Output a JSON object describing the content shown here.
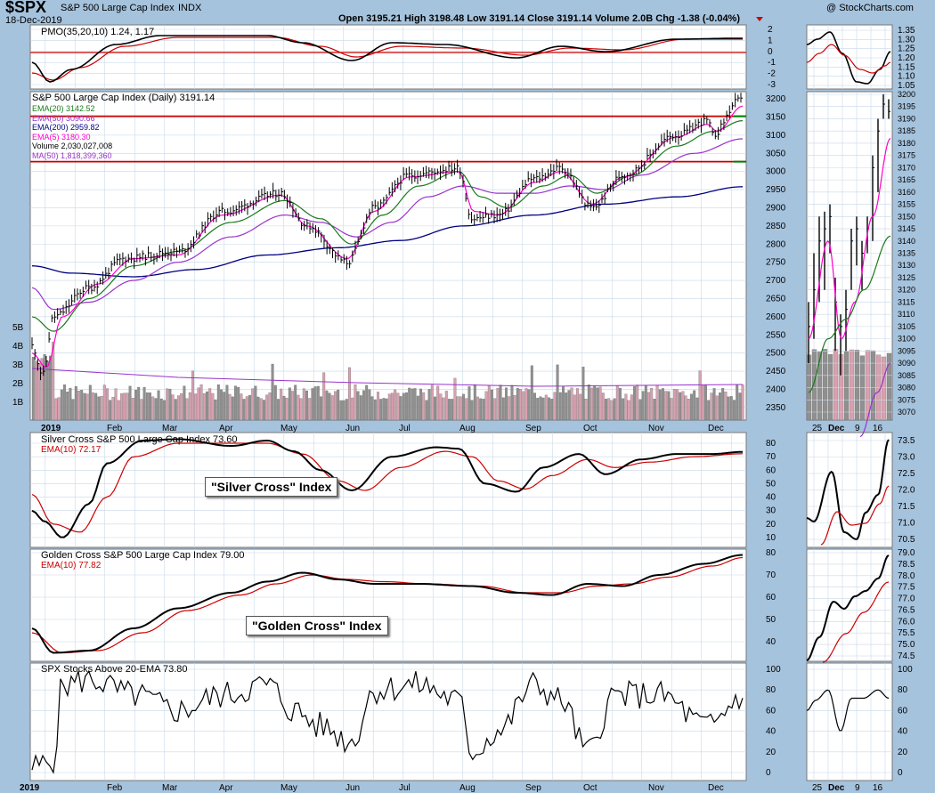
{
  "header": {
    "symbol": "$SPX",
    "name": "S&P 500 Large Cap Index",
    "exchange": "INDX",
    "date": "18-Dec-2019",
    "stats": "Open 3195.21  High 3198.48  Low 3191.14  Close 3191.14  Volume 2.0B  Chg -1.38 (-0.04%)",
    "copyright": "@ StockCharts.com"
  },
  "colors": {
    "background": "#a6c3dd",
    "panel": "#ffffff",
    "grid": "#c8d8e8",
    "price": "#000000",
    "ema20": "#1a7a1a",
    "ema50": "#9933cc",
    "ema200": "#000080",
    "ema5": "#ff00cc",
    "volume_up": "#d9a0b0",
    "volume_down": "#909090",
    "signal": "#cc0000",
    "hline_red": "#cc0000",
    "hline_green": "#008000"
  },
  "pmo_panel": {
    "label": "PMO(35,20,10) 1.24, 1.17",
    "yticks": [
      "2",
      "1",
      "0",
      "-1",
      "-2",
      "-3"
    ]
  },
  "price_panel": {
    "legend": [
      {
        "text": "S&P 500 Large Cap Index (Daily) 3191.14",
        "color": "#000000"
      },
      {
        "text": "EMA(20) 3142.52",
        "color": "#1a7a1a"
      },
      {
        "text": "EMA(50) 3090.66",
        "color": "#9933cc"
      },
      {
        "text": "EMA(200) 2959.82",
        "color": "#000080"
      },
      {
        "text": "EMA(5) 3180.30",
        "color": "#ff00cc"
      },
      {
        "text": "Volume 2,030,027,008",
        "color": "#000000"
      },
      {
        "text": "MA(50) 1,818,399,360",
        "color": "#9933cc"
      }
    ],
    "yticks": [
      "3200",
      "3150",
      "3100",
      "3050",
      "3000",
      "2950",
      "2900",
      "2850",
      "2800",
      "2750",
      "2700",
      "2650",
      "2600",
      "2550",
      "2500",
      "2450",
      "2400",
      "2350"
    ],
    "volume_ticks": [
      "5B",
      "4B",
      "3B",
      "2B",
      "1B"
    ],
    "xticks": [
      "2019",
      "Feb",
      "Mar",
      "Apr",
      "May",
      "Jun",
      "Jul",
      "Aug",
      "Sep",
      "Oct",
      "Nov",
      "Dec"
    ],
    "zoom_yticks": [
      "3200",
      "3195",
      "3190",
      "3185",
      "3180",
      "3175",
      "3170",
      "3165",
      "3160",
      "3155",
      "3150",
      "3145",
      "3140",
      "3135",
      "3130",
      "3125",
      "3120",
      "3115",
      "3110",
      "3105",
      "3100",
      "3095",
      "3090",
      "3085",
      "3080",
      "3075",
      "3070"
    ],
    "zoom_xticks": [
      "25",
      "Dec",
      "9",
      "16"
    ]
  },
  "silver_panel": {
    "label": "Silver Cross S&P 500 Large Cap Index 73.60",
    "signal_label": "EMA(10) 72.17",
    "callout": "\"Silver Cross\" Index",
    "yticks": [
      "80",
      "70",
      "60",
      "50",
      "40",
      "30",
      "20",
      "10"
    ],
    "zoom_yticks": [
      "73.5",
      "73.0",
      "72.5",
      "72.0",
      "71.5",
      "71.0",
      "70.5"
    ]
  },
  "golden_panel": {
    "label": "Golden Cross S&P 500 Large Cap Index 79.00",
    "signal_label": "EMA(10) 77.82",
    "callout": "\"Golden Cross\" Index",
    "yticks": [
      "80",
      "70",
      "60",
      "50",
      "40"
    ],
    "zoom_yticks": [
      "79.0",
      "78.5",
      "78.0",
      "77.5",
      "77.0",
      "76.5",
      "76.0",
      "75.5",
      "75.0",
      "74.5"
    ]
  },
  "ema_panel": {
    "label": "SPX Stocks Above 20-EMA 73.80",
    "yticks": [
      "100",
      "80",
      "60",
      "40",
      "20",
      "0"
    ],
    "xticks": [
      "2019",
      "Feb",
      "Mar",
      "Apr",
      "May",
      "Jun",
      "Jul",
      "Aug",
      "Sep",
      "Oct",
      "Nov",
      "Dec"
    ],
    "zoom_xticks": [
      "25",
      "Dec",
      "9",
      "16"
    ]
  },
  "chart_data": {
    "type": "line",
    "title": "S&P 500 Large Cap Index (Daily)",
    "x": [
      "2019",
      "Feb",
      "Mar",
      "Apr",
      "May",
      "Jun",
      "Jul",
      "Aug",
      "Sep",
      "Oct",
      "Nov",
      "Dec"
    ],
    "series": [
      {
        "name": "S&P 500 Large Cap Index (Daily)",
        "values": [
          2470,
          2700,
          2780,
          2860,
          2930,
          2750,
          2990,
          2960,
          2920,
          2950,
          3080,
          3191
        ]
      },
      {
        "name": "EMA(20)",
        "values": [
          2520,
          2660,
          2760,
          2830,
          2910,
          2800,
          2950,
          2960,
          2910,
          2930,
          3060,
          3142
        ]
      },
      {
        "name": "EMA(50)",
        "values": [
          2600,
          2610,
          2710,
          2790,
          2870,
          2820,
          2900,
          2950,
          2920,
          2920,
          3020,
          3090
        ]
      },
      {
        "name": "EMA(200)",
        "values": [
          2740,
          2710,
          2710,
          2740,
          2770,
          2790,
          2810,
          2840,
          2860,
          2880,
          2920,
          2960
        ]
      },
      {
        "name": "Silver Cross S&P 500 Large Cap Index",
        "values": [
          35,
          20,
          80,
          78,
          80,
          45,
          75,
          50,
          45,
          60,
          70,
          73.6
        ]
      },
      {
        "name": "Golden Cross S&P 500 Large Cap Index",
        "values": [
          48,
          35,
          47,
          62,
          70,
          66,
          64,
          62,
          61,
          66,
          74,
          79
        ]
      },
      {
        "name": "SPX Stocks Above 20-EMA",
        "values": [
          5,
          90,
          70,
          80,
          60,
          40,
          85,
          30,
          90,
          20,
          75,
          73.8
        ]
      }
    ],
    "price_hlines": [
      3152,
      3027
    ],
    "price_ylim": [
      2330,
      3210
    ]
  }
}
